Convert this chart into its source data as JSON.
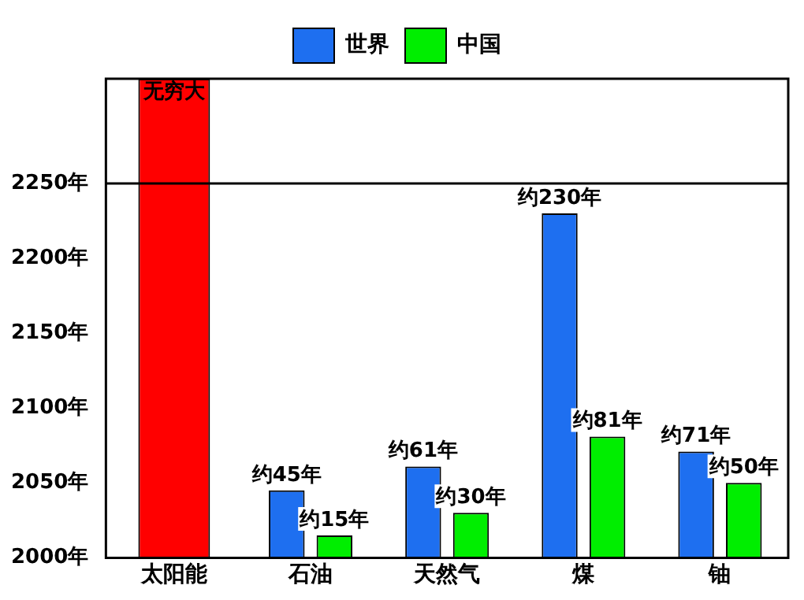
{
  "chart_data": {
    "type": "bar",
    "categories": [
      "太阳能",
      "石油",
      "天然气",
      "煤",
      "铀"
    ],
    "series": [
      {
        "color": "#ff0000",
        "values": [
          2320,
          null,
          null,
          null,
          null
        ],
        "value_labels": [
          "无穷大",
          null,
          null,
          null,
          null
        ]
      },
      {
        "name": "世界",
        "color": "#1e6ff0",
        "values": [
          null,
          2045,
          2061,
          2230,
          2071
        ],
        "value_labels": [
          null,
          "约45年",
          "约61年",
          "约230年",
          "约71年"
        ]
      },
      {
        "name": "中国",
        "color": "#00ee00",
        "values": [
          null,
          2015,
          2030,
          2081,
          2050
        ],
        "value_labels": [
          null,
          "约15年",
          "约30年",
          "约81年",
          "约50年"
        ]
      }
    ],
    "ylim": [
      2000,
      2320
    ],
    "yticks": [
      {
        "value": 2000,
        "label": "2000年"
      },
      {
        "value": 2050,
        "label": "2050年"
      },
      {
        "value": 2100,
        "label": "2100年"
      },
      {
        "value": 2150,
        "label": "2150年"
      },
      {
        "value": 2200,
        "label": "2200年"
      },
      {
        "value": 2250,
        "label": "2250年"
      }
    ],
    "ref_lines": [
      {
        "axis": "y",
        "value": 2250
      }
    ],
    "grid": false,
    "legend": "top"
  }
}
